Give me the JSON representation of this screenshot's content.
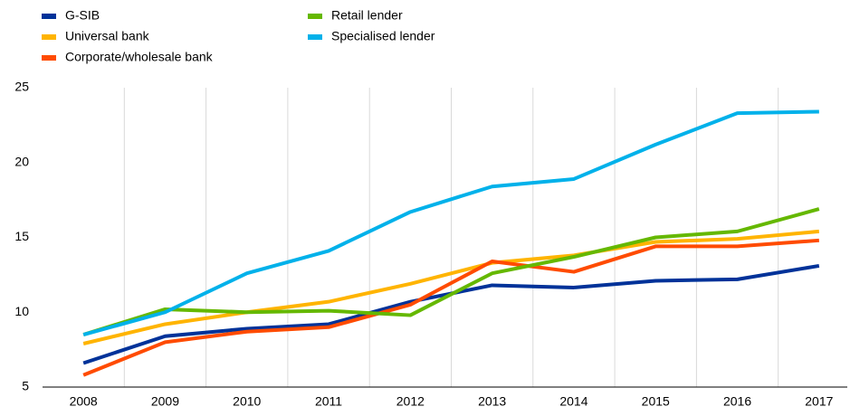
{
  "chart_data": {
    "type": "line",
    "categories": [
      "2008",
      "2009",
      "2010",
      "2011",
      "2012",
      "2013",
      "2014",
      "2015",
      "2016",
      "2017"
    ],
    "series": [
      {
        "name": "G-SIB",
        "color": "#003299",
        "values": [
          6.6,
          8.4,
          8.9,
          9.2,
          10.7,
          11.8,
          11.65,
          12.1,
          12.2,
          13.1
        ]
      },
      {
        "name": "Universal bank",
        "color": "#ffb400",
        "values": [
          7.9,
          9.2,
          10.0,
          10.7,
          11.9,
          13.3,
          13.8,
          14.7,
          14.9,
          15.4
        ]
      },
      {
        "name": "Corporate/wholesale bank",
        "color": "#ff4b00",
        "values": [
          5.8,
          8.0,
          8.7,
          9.0,
          10.5,
          13.4,
          12.7,
          14.4,
          14.4,
          14.8
        ]
      },
      {
        "name": "Retail lender",
        "color": "#65b800",
        "values": [
          8.5,
          10.2,
          10.0,
          10.1,
          9.8,
          12.6,
          13.7,
          15.0,
          15.4,
          16.9
        ]
      },
      {
        "name": "Specialised lender",
        "color": "#00b1ea",
        "values": [
          8.5,
          10.0,
          12.6,
          14.1,
          16.7,
          18.4,
          18.9,
          21.2,
          23.3,
          23.4
        ]
      }
    ],
    "ylim": [
      5,
      25
    ],
    "yticks": [
      5,
      10,
      15,
      20,
      25
    ],
    "grid": "x"
  }
}
